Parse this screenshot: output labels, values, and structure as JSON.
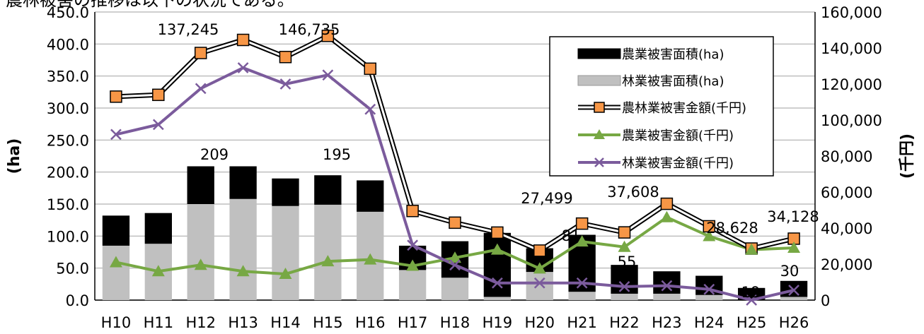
{
  "chart_data": {
    "type": "bar",
    "title_fragment": "農林被害の推移は以下の状況である。",
    "categories": [
      "H10",
      "H11",
      "H12",
      "H13",
      "H14",
      "H15",
      "H16",
      "H17",
      "H18",
      "H19",
      "H20",
      "H21",
      "H22",
      "H23",
      "H24",
      "H25",
      "H26"
    ],
    "ylabel_left": "(ha)",
    "ylabel_right": "(千円)",
    "ylim_left": [
      0,
      450
    ],
    "ylim_right": [
      0,
      160000
    ],
    "yticks_left": [
      "0.0",
      "50.0",
      "100.0",
      "150.0",
      "200.0",
      "250.0",
      "300.0",
      "350.0",
      "400.0",
      "450.0"
    ],
    "yticks_right": [
      "0",
      "20,000",
      "40,000",
      "60,000",
      "80,000",
      "100,000",
      "120,000",
      "140,000",
      "160,000"
    ],
    "grid": true,
    "legend_position": "right",
    "series": [
      {
        "name": "農業被害面積(ha)",
        "kind": "bar",
        "axis": "left",
        "color": "#000000",
        "values": [
          47,
          48,
          59,
          51,
          43,
          46,
          49,
          38,
          57,
          100,
          37,
          89,
          45,
          35,
          30,
          19,
          25
        ]
      },
      {
        "name": "林業被害面積(ha)",
        "kind": "bar",
        "axis": "left",
        "color": "#c0c0c0",
        "values": [
          85,
          88,
          150,
          158,
          147,
          149,
          138,
          47,
          35,
          5,
          44,
          13,
          10,
          10,
          8,
          0,
          5
        ]
      },
      {
        "name": "農林業被害金額(千円)",
        "kind": "line",
        "axis": "right",
        "color": "#f79646",
        "values": [
          113000,
          114000,
          137245,
          144500,
          135000,
          146735,
          128500,
          49500,
          43000,
          37500,
          27499,
          42500,
          37608,
          53500,
          41000,
          28628,
          34128
        ]
      },
      {
        "name": "農業被害金額(千円)",
        "kind": "line",
        "axis": "right",
        "color": "#77a844",
        "values": [
          21000,
          16000,
          19500,
          16000,
          14500,
          21500,
          22500,
          19000,
          23500,
          28000,
          17500,
          32500,
          29500,
          46000,
          35500,
          28000,
          29000
        ]
      },
      {
        "name": "林業被害金額(千円)",
        "kind": "line",
        "axis": "right",
        "color": "#7b5b9c",
        "values": [
          92000,
          97500,
          117500,
          129000,
          120000,
          125000,
          106000,
          30500,
          19500,
          9500,
          9500,
          9500,
          7500,
          8000,
          6000,
          0,
          5500
        ]
      }
    ],
    "data_labels": [
      {
        "category": "H12",
        "text": "137,245"
      },
      {
        "category": "H15",
        "text": "146,735"
      },
      {
        "category": "H12",
        "text": "209"
      },
      {
        "category": "H15",
        "text": "195"
      },
      {
        "category": "H20",
        "text": "27,499"
      },
      {
        "category": "H20",
        "text": "81"
      },
      {
        "category": "H22",
        "text": "37,608"
      },
      {
        "category": "H22",
        "text": "55"
      },
      {
        "category": "H25",
        "text": "28,628"
      },
      {
        "category": "H25",
        "text": "19"
      },
      {
        "category": "H26",
        "text": "34,128"
      },
      {
        "category": "H26",
        "text": "30"
      }
    ]
  }
}
